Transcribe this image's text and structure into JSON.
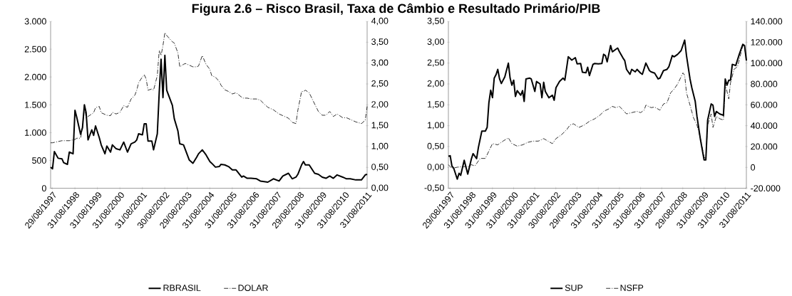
{
  "chart_data": [
    {
      "type": "line",
      "title": "Figura 2.6 – Risco Brasil, Taxa de Câmbio e Resultado Primário/PIB",
      "legend": "bottom",
      "xlim": [
        "1997-08",
        "2011-09"
      ],
      "xticks": [
        {
          "value": "1997-08-29",
          "label": "29/08/1997"
        },
        {
          "value": "1998-08-31",
          "label": "31/08/1998"
        },
        {
          "value": "1999-08-31",
          "label": "31/08/1999"
        },
        {
          "value": "2000-08-31",
          "label": "31/08/2000"
        },
        {
          "value": "2001-08-31",
          "label": "31/08/2001"
        },
        {
          "value": "2002-08-30",
          "label": "30/08/2002"
        },
        {
          "value": "2003-08-29",
          "label": "29/08/2003"
        },
        {
          "value": "2004-08-31",
          "label": "31/08/2004"
        },
        {
          "value": "2005-08-31",
          "label": "31/08/2005"
        },
        {
          "value": "2006-08-31",
          "label": "31/08/2006"
        },
        {
          "value": "2007-08-31",
          "label": "31/08/2007"
        },
        {
          "value": "2008-08-29",
          "label": "29/08/2008"
        },
        {
          "value": "2009-08-31",
          "label": "31/08/2009"
        },
        {
          "value": "2010-08-31",
          "label": "31/08/2010"
        },
        {
          "value": "2011-08-31",
          "label": "31/08/2011"
        }
      ],
      "ylim": [
        0,
        3000
      ],
      "yticks": [
        0,
        500,
        {
          "value": 1000,
          "label": "1.000"
        },
        {
          "value": 1500,
          "label": "1.500"
        },
        {
          "value": 2000,
          "label": "2.000"
        },
        {
          "value": 2500,
          "label": "2.500"
        },
        {
          "value": 3000,
          "label": "3.000"
        }
      ],
      "y2lim": [
        0,
        4
      ],
      "y2ticks": [
        {
          "value": 0,
          "label": "0,00"
        },
        {
          "value": 0.5,
          "label": "0,50"
        },
        {
          "value": 1,
          "label": "1,00"
        },
        {
          "value": 1.5,
          "label": "1,50"
        },
        {
          "value": 2,
          "label": "2,00"
        },
        {
          "value": 2.5,
          "label": "2,50"
        },
        {
          "value": 3,
          "label": "3,00"
        },
        {
          "value": 3.5,
          "label": "3,50"
        },
        {
          "value": 4,
          "label": "4,00"
        }
      ],
      "x": [
        "1997-08",
        "1997-09",
        "1997-10",
        "1997-12",
        "1998-02",
        "1998-03",
        "1998-05",
        "1998-06",
        "1998-08",
        "1998-09",
        "1998-10",
        "1998-12",
        "1999-01",
        "1999-02",
        "1999-03",
        "1999-04",
        "1999-06",
        "1999-07",
        "1999-08",
        "1999-10",
        "1999-11",
        "2000-01",
        "2000-02",
        "2000-04",
        "2000-05",
        "2000-07",
        "2000-09",
        "2000-11",
        "2001-01",
        "2001-03",
        "2001-05",
        "2001-06",
        "2001-07",
        "2001-09",
        "2001-10",
        "2001-11",
        "2001-12",
        "2002-02",
        "2002-03",
        "2002-05",
        "2002-06",
        "2002-07",
        "2002-08",
        "2002-09",
        "2002-10",
        "2003-01",
        "2003-02",
        "2003-04",
        "2003-05",
        "2003-07",
        "2003-08",
        "2003-10",
        "2003-12",
        "2004-02",
        "2004-03",
        "2004-05",
        "2004-07",
        "2004-09",
        "2004-10",
        "2004-12",
        "2005-02",
        "2005-03",
        "2005-05",
        "2005-07",
        "2005-09",
        "2005-11",
        "2006-02",
        "2006-03",
        "2006-05",
        "2006-07",
        "2006-10",
        "2006-12",
        "2007-02",
        "2007-04",
        "2007-07",
        "2007-10",
        "2007-12",
        "2008-03",
        "2008-05",
        "2008-07",
        "2008-08",
        "2008-10",
        "2008-11",
        "2008-12",
        "2009-02",
        "2009-05",
        "2009-07",
        "2009-09",
        "2009-11",
        "2010-01",
        "2010-03",
        "2010-05",
        "2010-08",
        "2010-10",
        "2010-12",
        "2011-03",
        "2011-06",
        "2011-08",
        "2011-09"
      ],
      "series": [
        {
          "name": "RBRASIL",
          "color": "#000000",
          "line_style": "solid",
          "values": [
            380,
            350,
            660,
            540,
            530,
            460,
            430,
            650,
            620,
            1400,
            1270,
            970,
            1090,
            1500,
            1360,
            870,
            1050,
            950,
            1120,
            910,
            780,
            620,
            760,
            650,
            780,
            710,
            690,
            830,
            650,
            800,
            830,
            870,
            980,
            960,
            1160,
            1160,
            850,
            850,
            690,
            980,
            1720,
            2320,
            1630,
            2390,
            1760,
            1490,
            1250,
            1030,
            800,
            780,
            690,
            510,
            450,
            560,
            620,
            690,
            600,
            480,
            450,
            380,
            390,
            430,
            420,
            390,
            330,
            330,
            200,
            220,
            180,
            180,
            170,
            130,
            120,
            110,
            170,
            130,
            220,
            270,
            170,
            200,
            250,
            420,
            480,
            420,
            420,
            270,
            250,
            200,
            180,
            220,
            180,
            240,
            200,
            170,
            170,
            150,
            150,
            240,
            250
          ]
        },
        {
          "name": "DOLAR",
          "color": "#000000",
          "line_style": "dashdot",
          "axis": "y2",
          "values": [
            1.09,
            1.09,
            1.1,
            1.12,
            1.14,
            1.14,
            1.14,
            1.14,
            1.16,
            1.17,
            1.2,
            1.2,
            1.46,
            1.99,
            1.69,
            1.72,
            1.78,
            1.81,
            1.93,
            1.96,
            1.81,
            1.77,
            1.75,
            1.74,
            1.82,
            1.78,
            1.82,
            1.98,
            1.94,
            2.14,
            2.23,
            2.35,
            2.53,
            2.67,
            2.72,
            2.62,
            2.35,
            2.38,
            2.35,
            2.7,
            3.3,
            3.18,
            3.42,
            3.73,
            3.66,
            3.51,
            3.48,
            3.24,
            2.91,
            2.97,
            2.99,
            2.95,
            2.91,
            2.91,
            2.93,
            3.18,
            2.97,
            2.85,
            2.7,
            2.66,
            2.56,
            2.47,
            2.36,
            2.32,
            2.26,
            2.29,
            2.18,
            2.16,
            2.16,
            2.14,
            2.14,
            2.11,
            2.02,
            1.94,
            1.88,
            1.78,
            1.74,
            1.68,
            1.58,
            1.55,
            1.87,
            2.32,
            2.32,
            2.35,
            2.29,
            2.02,
            1.84,
            1.75,
            1.75,
            1.84,
            1.72,
            1.78,
            1.69,
            1.69,
            1.65,
            1.59,
            1.55,
            1.63,
            1.96
          ]
        }
      ]
    },
    {
      "type": "line",
      "legend": "bottom",
      "xlim": [
        "1997-08",
        "2011-09"
      ],
      "xticks": [
        {
          "value": "1997-08-29",
          "label": "29/08/1997"
        },
        {
          "value": "1998-08-31",
          "label": "31/08/1998"
        },
        {
          "value": "1999-08-31",
          "label": "31/08/1999"
        },
        {
          "value": "2000-08-31",
          "label": "31/08/2000"
        },
        {
          "value": "2001-08-31",
          "label": "31/08/2001"
        },
        {
          "value": "2002-08-30",
          "label": "30/08/2002"
        },
        {
          "value": "2003-08-29",
          "label": "29/08/2003"
        },
        {
          "value": "2004-08-31",
          "label": "31/08/2004"
        },
        {
          "value": "2005-08-31",
          "label": "31/08/2005"
        },
        {
          "value": "2006-08-31",
          "label": "31/08/2006"
        },
        {
          "value": "2007-08-31",
          "label": "31/08/2007"
        },
        {
          "value": "2008-08-29",
          "label": "29/08/2008"
        },
        {
          "value": "2009-08-31",
          "label": "31/08/2009"
        },
        {
          "value": "2010-08-31",
          "label": "31/08/2010"
        },
        {
          "value": "2011-08-31",
          "label": "31/08/2011"
        }
      ],
      "ylim": [
        -0.5,
        3.5
      ],
      "yticks": [
        {
          "value": -0.5,
          "label": "-0,50"
        },
        {
          "value": 0,
          "label": "0,00"
        },
        {
          "value": 0.5,
          "label": "0,50"
        },
        {
          "value": 1,
          "label": "1,00"
        },
        {
          "value": 1.5,
          "label": "1,50"
        },
        {
          "value": 2,
          "label": "2,00"
        },
        {
          "value": 2.5,
          "label": "2,50"
        },
        {
          "value": 3,
          "label": "3,00"
        },
        {
          "value": 3.5,
          "label": "3,50"
        }
      ],
      "y2lim": [
        -20000,
        140000
      ],
      "y2ticks": [
        {
          "value": -20000,
          "label": "-20.000"
        },
        0,
        {
          "value": 20000,
          "label": "20.000"
        },
        {
          "value": 40000,
          "label": "40.000"
        },
        {
          "value": 60000,
          "label": "60.000"
        },
        {
          "value": 80000,
          "label": "80.000"
        },
        {
          "value": 100000,
          "label": "100.000"
        },
        {
          "value": 120000,
          "label": "120.000"
        },
        {
          "value": 140000,
          "label": "140.000"
        }
      ],
      "series": [
        {
          "name": "SUP",
          "color": "#000000",
          "line_style": "solid",
          "x": [
            "1997-08",
            "1997-09",
            "1997-10",
            "1997-11",
            "1998-01",
            "1998-02",
            "1998-03",
            "1998-05",
            "1998-07",
            "1998-09",
            "1998-10",
            "1998-12",
            "1999-01",
            "1999-03",
            "1999-05",
            "1999-06",
            "1999-07",
            "1999-08",
            "1999-09",
            "1999-10",
            "1999-11",
            "1999-12",
            "2000-01",
            "2000-02",
            "2000-04",
            "2000-06",
            "2000-07",
            "2000-08",
            "2000-09",
            "2000-10",
            "2000-11",
            "2001-01",
            "2001-02",
            "2001-03",
            "2001-04",
            "2001-06",
            "2001-07",
            "2001-09",
            "2001-10",
            "2001-12",
            "2002-01",
            "2002-02",
            "2002-03",
            "2002-05",
            "2002-07",
            "2002-08",
            "2002-09",
            "2002-11",
            "2003-01",
            "2003-02",
            "2003-04",
            "2003-06",
            "2003-08",
            "2003-09",
            "2003-11",
            "2003-12",
            "2004-02",
            "2004-03",
            "2004-04",
            "2004-06",
            "2004-07",
            "2004-09",
            "2004-11",
            "2004-12",
            "2005-01",
            "2005-02",
            "2005-04",
            "2005-05",
            "2005-07",
            "2005-08",
            "2005-09",
            "2005-11",
            "2005-12",
            "2006-01",
            "2006-03",
            "2006-04",
            "2006-06",
            "2006-07",
            "2006-09",
            "2006-10",
            "2006-12",
            "2007-02",
            "2007-03",
            "2007-05",
            "2007-07",
            "2007-08",
            "2007-10",
            "2007-12",
            "2008-01",
            "2008-03",
            "2008-04",
            "2008-06",
            "2008-08",
            "2008-10",
            "2008-11",
            "2009-01",
            "2009-02",
            "2009-04",
            "2009-05",
            "2009-07",
            "2009-09",
            "2009-10",
            "2009-11",
            "2010-01",
            "2010-02",
            "2010-03",
            "2010-04",
            "2010-05",
            "2010-06",
            "2010-08",
            "2010-09",
            "2010-10",
            "2010-11",
            "2010-12",
            "2011-01",
            "2011-03",
            "2011-05",
            "2011-07",
            "2011-08",
            "2011-09"
          ],
          "values": [
            0.27,
            0.28,
            0.03,
            -0.02,
            -0.28,
            -0.14,
            -0.19,
            0.17,
            -0.16,
            0.2,
            0.33,
            0.21,
            0.48,
            0.87,
            0.87,
            0.96,
            1.55,
            1.85,
            1.67,
            2.14,
            2.22,
            2.35,
            2.12,
            2.01,
            2.17,
            2.5,
            2.14,
            1.97,
            2.09,
            1.7,
            1.84,
            1.73,
            1.84,
            1.58,
            2.12,
            2.14,
            2.12,
            1.82,
            2.06,
            2.0,
            1.67,
            2.04,
            1.82,
            1.67,
            1.73,
            1.61,
            1.91,
            2.06,
            2.14,
            2.09,
            2.65,
            2.57,
            2.63,
            2.48,
            2.49,
            2.28,
            2.27,
            2.4,
            2.2,
            2.47,
            2.49,
            2.48,
            2.49,
            2.71,
            2.68,
            2.53,
            2.92,
            2.77,
            2.83,
            2.86,
            2.77,
            2.62,
            2.56,
            2.35,
            2.23,
            2.35,
            2.29,
            2.35,
            2.26,
            2.23,
            2.5,
            2.32,
            2.29,
            2.26,
            2.12,
            2.14,
            2.32,
            2.35,
            2.41,
            2.68,
            2.65,
            2.71,
            2.8,
            3.05,
            2.68,
            2.12,
            1.91,
            1.58,
            1.22,
            0.66,
            0.18,
            0.18,
            1.13,
            1.52,
            1.49,
            1.22,
            1.34,
            1.31,
            1.28,
            1.25,
            2.12,
            1.97,
            2.09,
            2.09,
            2.47,
            2.44,
            2.71,
            2.95,
            2.92,
            2.56
          ]
        },
        {
          "name": "NSFP",
          "color": "#000000",
          "line_style": "dashdot",
          "axis": "y2",
          "x": [
            "1997-08",
            "1997-10",
            "1998-01",
            "1998-04",
            "1998-07",
            "1998-09",
            "1998-11",
            "1999-02",
            "1999-05",
            "1999-07",
            "1999-09",
            "1999-12",
            "2000-03",
            "2000-06",
            "2000-08",
            "2000-11",
            "2001-02",
            "2001-05",
            "2001-08",
            "2001-11",
            "2002-02",
            "2002-05",
            "2002-07",
            "2002-09",
            "2002-12",
            "2003-03",
            "2003-05",
            "2003-07",
            "2003-10",
            "2004-01",
            "2004-04",
            "2004-07",
            "2004-10",
            "2004-12",
            "2005-03",
            "2005-05",
            "2005-07",
            "2005-09",
            "2005-11",
            "2006-01",
            "2006-04",
            "2006-07",
            "2006-09",
            "2006-11",
            "2006-12",
            "2007-03",
            "2007-05",
            "2007-08",
            "2007-10",
            "2007-12",
            "2008-02",
            "2008-04",
            "2008-06",
            "2008-09",
            "2008-10",
            "2008-11",
            "2009-01",
            "2009-03",
            "2009-05",
            "2009-07",
            "2009-09",
            "2009-10",
            "2009-11",
            "2010-01",
            "2010-02",
            "2010-04",
            "2010-06",
            "2010-08",
            "2010-09",
            "2010-11",
            "2010-12",
            "2011-02",
            "2011-04",
            "2011-07",
            "2011-08",
            "2011-09"
          ],
          "values": [
            2600,
            -1000,
            200,
            700,
            700,
            2600,
            1400,
            8600,
            8600,
            15700,
            22800,
            21600,
            25200,
            28300,
            22800,
            20400,
            21600,
            24000,
            25200,
            25200,
            27600,
            24700,
            22800,
            27600,
            31100,
            35900,
            40600,
            41800,
            38300,
            40600,
            44200,
            46600,
            50100,
            53700,
            56100,
            58500,
            57300,
            58500,
            54900,
            51300,
            52500,
            53700,
            52500,
            54900,
            59700,
            57300,
            57800,
            54900,
            60800,
            62000,
            71500,
            75100,
            79900,
            90600,
            88200,
            71500,
            59700,
            47800,
            40600,
            27600,
            9700,
            8600,
            40600,
            51300,
            38300,
            49000,
            46600,
            45400,
            79900,
            65600,
            81100,
            94100,
            96500,
            116700,
            115500,
            102400
          ]
        }
      ]
    }
  ]
}
